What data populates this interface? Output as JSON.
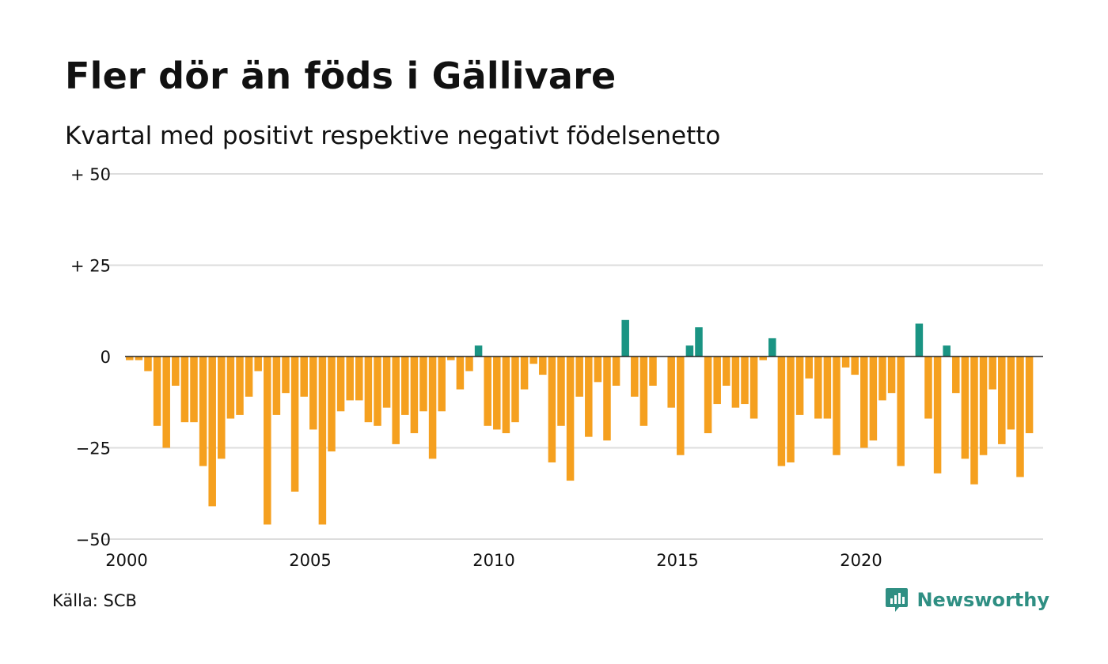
{
  "title": "Fler dör än föds i Gällivare",
  "subtitle": "Kvartal med positivt respektive negativt födelsenetto",
  "source": "Källa: SCB",
  "brand": "Newsworthy",
  "colors": {
    "negative": "#F5A01F",
    "positive": "#1A9483",
    "grid": "#dddddd",
    "zero": "#222222"
  },
  "chart_data": {
    "type": "bar",
    "ylim": [
      -50,
      50
    ],
    "yticks": [
      {
        "value": 50,
        "label": "+ 50"
      },
      {
        "value": 25,
        "label": "+ 25"
      },
      {
        "value": 0,
        "label": "0"
      },
      {
        "value": -25,
        "label": "−25"
      },
      {
        "value": -50,
        "label": "−50"
      }
    ],
    "xticks": [
      {
        "year": 2000,
        "label": "2000"
      },
      {
        "year": 2005,
        "label": "2005"
      },
      {
        "year": 2010,
        "label": "2010"
      },
      {
        "year": 2015,
        "label": "2015"
      },
      {
        "year": 2020,
        "label": "2020"
      }
    ],
    "start_year": 2000,
    "values": [
      -1,
      -1,
      -4,
      -19,
      -25,
      -8,
      -18,
      -18,
      -30,
      -41,
      -28,
      -17,
      -16,
      -11,
      -4,
      -46,
      -16,
      -10,
      -37,
      -11,
      -20,
      -46,
      -26,
      -15,
      -12,
      -12,
      -18,
      -19,
      -14,
      -24,
      -16,
      -21,
      -15,
      -28,
      -15,
      -1,
      -9,
      -4,
      3,
      -19,
      -20,
      -21,
      -18,
      -9,
      -2,
      -5,
      -29,
      -19,
      -34,
      -11,
      -22,
      -7,
      -23,
      -8,
      10,
      -11,
      -19,
      -8,
      0,
      -14,
      -27,
      3,
      8,
      -21,
      -13,
      -8,
      -14,
      -13,
      -17,
      -1,
      5,
      -30,
      -29,
      -16,
      -6,
      -17,
      -17,
      -27,
      -3,
      -5,
      -25,
      -23,
      -12,
      -10,
      -30,
      0,
      9,
      -17,
      -32,
      3,
      -10,
      -28,
      -35,
      -27,
      -9,
      -24,
      -20,
      -33,
      -21
    ]
  }
}
